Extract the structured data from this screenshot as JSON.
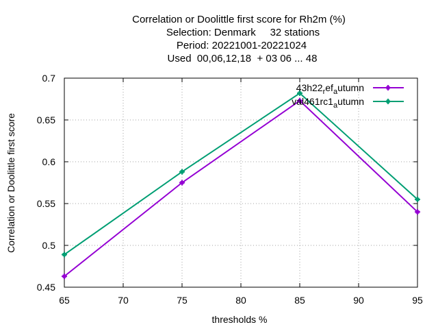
{
  "chart_data": {
    "type": "line",
    "title_lines": [
      "Correlation or Doolittle first score  for Rh2m (%)",
      "Selection: Denmark     32 stations",
      "Period: 20221001-20221024",
      "Used  00,06,12,18  + 03 06 ... 48"
    ],
    "xlabel": "thresholds %",
    "ylabel": "Correlation or Doolittle first score",
    "xlim": [
      65,
      95
    ],
    "ylim": [
      0.45,
      0.7
    ],
    "xticks": [
      65,
      70,
      75,
      80,
      85,
      90,
      95
    ],
    "yticks": [
      0.45,
      0.5,
      0.55,
      0.6,
      0.65,
      0.7
    ],
    "xtick_labels": [
      "65",
      "70",
      "75",
      "80",
      "85",
      "90",
      "95"
    ],
    "ytick_labels": [
      "0.45",
      "0.5",
      "0.55",
      "0.6",
      "0.65",
      "0.7"
    ],
    "grid": true,
    "legend_position": "top-right",
    "x": [
      65,
      75,
      85,
      95
    ],
    "series": [
      {
        "name": "43h22_ref_autumn",
        "legend_parts": [
          "43h22",
          "r",
          "ef",
          "a",
          "utumn"
        ],
        "color": "#9400d3",
        "values": [
          0.463,
          0.575,
          0.673,
          0.54
        ]
      },
      {
        "name": "val461rc1_autumn",
        "legend_parts": [
          "val461rc1",
          "",
          "",
          "a",
          "utumn"
        ],
        "color": "#009e73",
        "values": [
          0.489,
          0.588,
          0.682,
          0.555
        ]
      }
    ]
  }
}
